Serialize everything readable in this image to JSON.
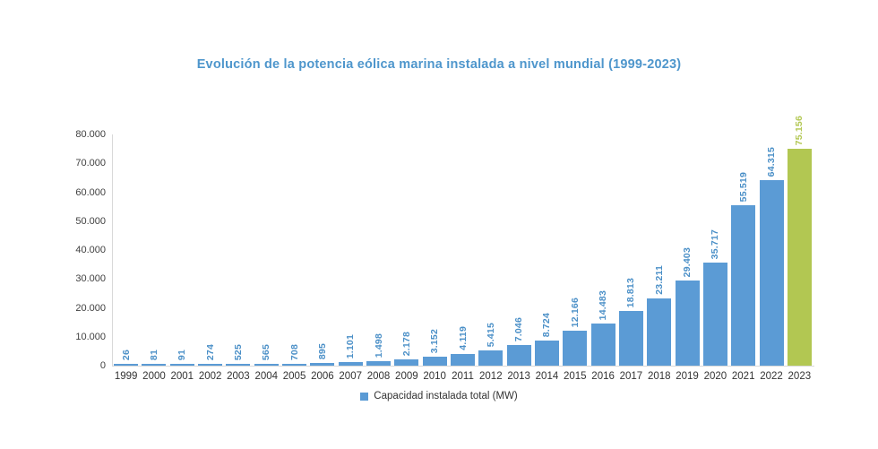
{
  "title": "Evolución de la potencia eólica marina instalada a nivel mundial (1999-2023)",
  "legend": {
    "label": "Capacidad instalada total (MW)"
  },
  "colors": {
    "bar": "#5b9bd5",
    "highlight": "#b2c752",
    "title": "#4e96cc",
    "value_label": "#4a8fc7",
    "highlight_label": "#b2c752",
    "axis_line": "#d9d9d9",
    "tick_text": "#404040",
    "year_text": "#333333"
  },
  "chart_data": {
    "type": "bar",
    "title": "Evolución de la potencia eólica marina instalada a nivel mundial (1999-2023)",
    "xlabel": "",
    "ylabel": "",
    "ylim": [
      0,
      80000
    ],
    "grid": false,
    "legend_position": "bottom",
    "series_name": "Capacidad instalada total (MW)",
    "categories": [
      "1999",
      "2000",
      "2001",
      "2002",
      "2003",
      "2004",
      "2005",
      "2006",
      "2007",
      "2008",
      "2009",
      "2010",
      "2011",
      "2012",
      "2013",
      "2014",
      "2015",
      "2016",
      "2017",
      "2018",
      "2019",
      "2020",
      "2021",
      "2022",
      "2023"
    ],
    "values": [
      26,
      81,
      91,
      274,
      525,
      565,
      708,
      895,
      1101,
      1498,
      2178,
      3152,
      4119,
      5415,
      7046,
      8724,
      12166,
      14483,
      18813,
      23211,
      29403,
      35717,
      55519,
      64315,
      75156
    ],
    "value_labels": [
      "26",
      "81",
      "91",
      "274",
      "525",
      "565",
      "708",
      "895",
      "1.101",
      "1.498",
      "2.178",
      "3.152",
      "4.119",
      "5.415",
      "7.046",
      "8.724",
      "12.166",
      "14.483",
      "18.813",
      "23.211",
      "29.403",
      "35.717",
      "55.519",
      "64.315",
      "75.156"
    ],
    "y_ticks": [
      "80.000",
      "70.000",
      "60.000",
      "50.000",
      "40.000",
      "30.000",
      "20.000",
      "10.000",
      "0"
    ],
    "highlight_index": 24
  }
}
